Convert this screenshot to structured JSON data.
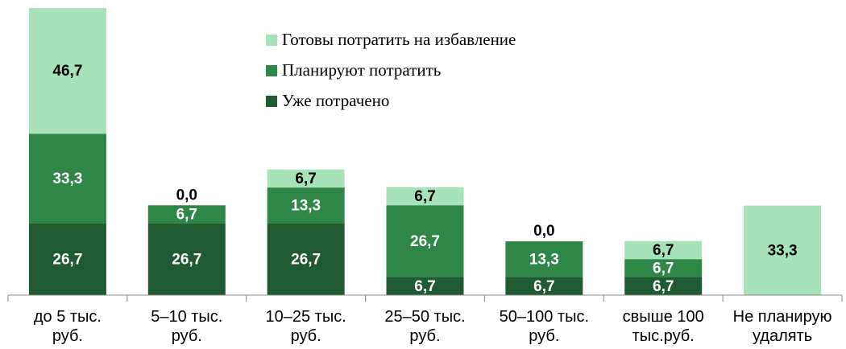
{
  "chart_data": {
    "type": "stacked_bar",
    "categories": [
      "до 5 тыс. руб.",
      "5–10 тыс. руб.",
      "10–25 тыс. руб.",
      "25–50 тыс. руб.",
      "50–100 тыс. руб.",
      "свыше 100 тыс.руб.",
      "Не планирую удалять"
    ],
    "series": [
      {
        "name": "Уже потрачено",
        "color": "#1f5a33",
        "values": [
          26.7,
          26.7,
          26.7,
          6.7,
          6.7,
          6.7,
          null
        ],
        "value_labels": [
          "26,7",
          "26,7",
          "26,7",
          "6,7",
          "6,7",
          "6,7",
          null
        ]
      },
      {
        "name": "Планируют потратить",
        "color": "#2e8747",
        "values": [
          33.3,
          6.7,
          13.3,
          26.7,
          13.3,
          6.7,
          null
        ],
        "value_labels": [
          "33,3",
          "6,7",
          "13,3",
          "26,7",
          "13,3",
          "6,7",
          null
        ]
      },
      {
        "name": "Готовы потратить на избавление",
        "color": "#a8e2b9",
        "values": [
          46.7,
          0.0,
          6.7,
          6.7,
          0.0,
          6.7,
          33.3
        ],
        "value_labels": [
          "46,7",
          "0,0",
          "6,7",
          "6,7",
          "0,0",
          "6,7",
          "33,3"
        ]
      }
    ],
    "legend": "top-center"
  }
}
